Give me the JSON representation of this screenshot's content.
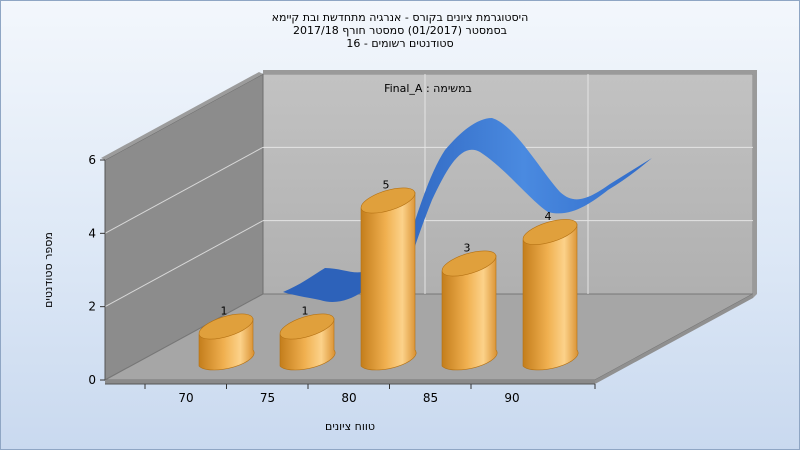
{
  "chart_data": {
    "type": "bar",
    "title_lines": [
      "היסטוגרמת ציונים בקורס - אנרגיה מתחדשת ובת קיימא",
      "בסמסטר  (01/2017)  סמסטר חורף 2017/18",
      "סטודנטים רשומים - 16"
    ],
    "annotation": "במשימה : Final_A",
    "xlabel": "טווח ציונים",
    "ylabel": "מספר סטודנטים",
    "x_ticks": [
      "70",
      "75",
      "80",
      "85",
      "90"
    ],
    "y_ticks": [
      "0",
      "2",
      "4",
      "6"
    ],
    "ylim": [
      0,
      6
    ],
    "grid": true,
    "categories": [
      "70",
      "75",
      "80",
      "85",
      "90"
    ],
    "values": [
      1,
      1,
      5,
      3,
      4
    ],
    "data_labels": [
      "1",
      "1",
      "5",
      "3",
      "4"
    ],
    "curve": {
      "type": "line",
      "shape": "smoothed distribution ribbon"
    },
    "colors": {
      "bar": "#e8a640",
      "bar_light": "#fcd28a",
      "bar_dark": "#c98420",
      "curve": "#3a78d4",
      "back_wall": "#b8b8b8",
      "side_wall": "#8a8a8a",
      "floor": "#a4a4a4"
    }
  }
}
